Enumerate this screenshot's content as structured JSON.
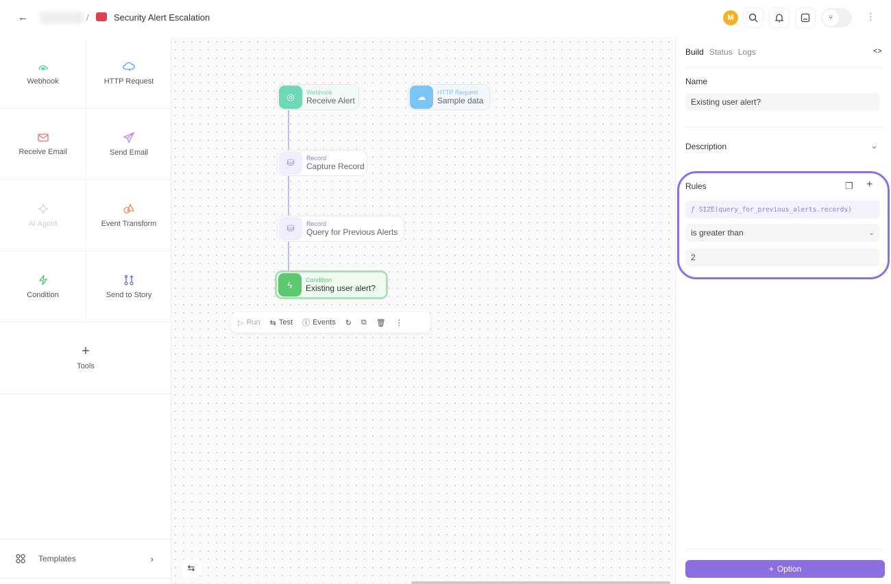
{
  "header": {
    "title": "Security Alert Escalation",
    "separator": "/",
    "avatar": "M",
    "avatar_color": "#f4b223"
  },
  "sidebar": {
    "items": [
      {
        "label": "Webhook",
        "icon": "webhook-icon",
        "color": "#4fcfa5"
      },
      {
        "label": "HTTP Request",
        "icon": "cloud-icon",
        "color": "#4fa6ef"
      },
      {
        "label": "Receive Email",
        "icon": "mail-icon",
        "color": "#ef6b6b"
      },
      {
        "label": "Send Email",
        "icon": "send-icon",
        "color": "#c77ef0"
      },
      {
        "label": "AI Agent",
        "icon": "sparkle-icon",
        "color": "#d8d8d8"
      },
      {
        "label": "Event Transform",
        "icon": "shapes-icon",
        "color": "#f08a4b"
      },
      {
        "label": "Condition",
        "icon": "bolt-icon",
        "color": "#4fc46a"
      },
      {
        "label": "Send to Story",
        "icon": "git-branch-icon",
        "color": "#5b6be0"
      }
    ],
    "tools": "Tools",
    "templates": "Templates"
  },
  "canvas": {
    "nodes": [
      {
        "type": "Webhook",
        "name": "Receive Alert"
      },
      {
        "type": "HTTP Request",
        "name": "Sample data"
      },
      {
        "type": "Record",
        "name": "Capture Record"
      },
      {
        "type": "Record",
        "name": "Query for Previous Alerts"
      },
      {
        "type": "Condition",
        "name": "Existing user alert?"
      }
    ],
    "toolbar": {
      "run": "Run",
      "test": "Test",
      "events": "Events"
    }
  },
  "panel": {
    "tabs": [
      "Build",
      "Status",
      "Logs"
    ],
    "active_tab": "Build",
    "name_label": "Name",
    "name_value": "Existing user alert?",
    "description_label": "Description",
    "rules_label": "Rules",
    "rule": {
      "expression": "SIZE(query_for_previous_alerts.records)",
      "operator": "is greater than",
      "value": "2"
    },
    "option_button": "Option",
    "accent": "#8b6fe0"
  }
}
